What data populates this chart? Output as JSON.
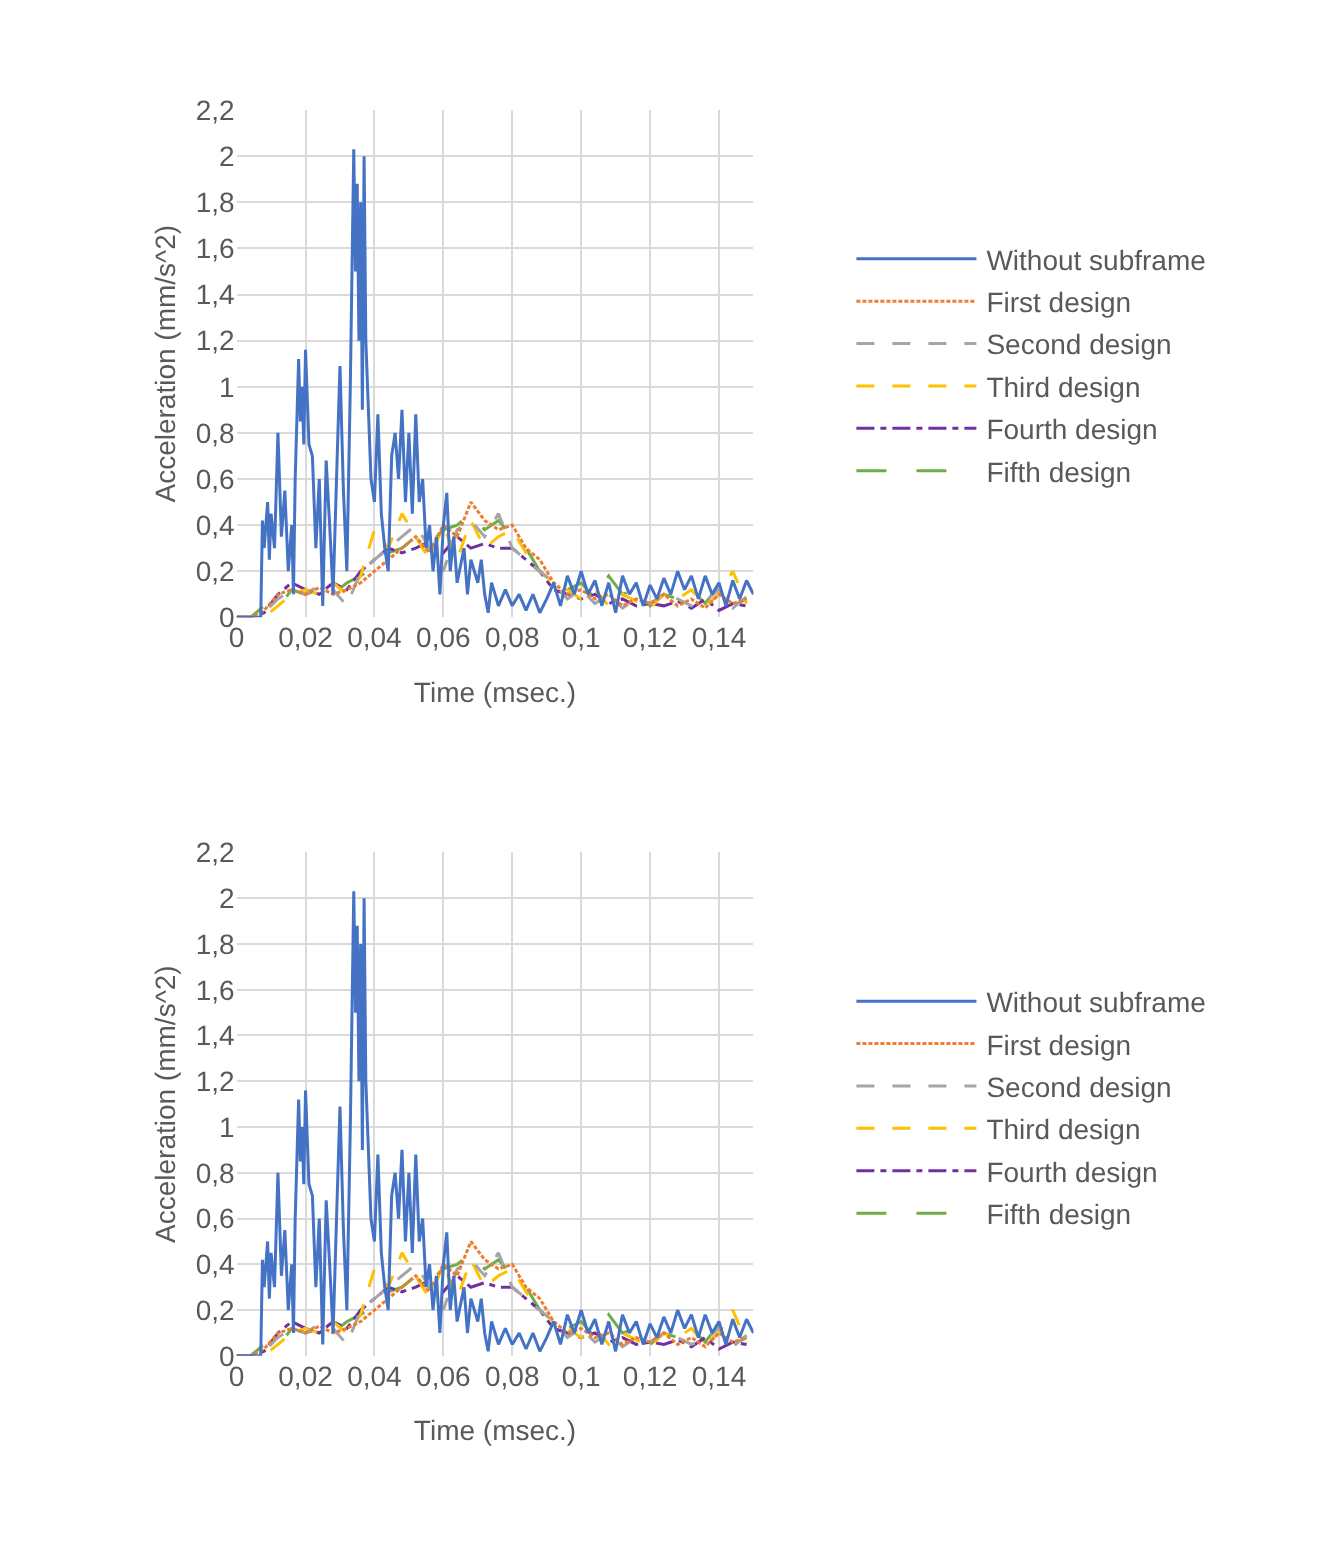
{
  "chart_data": [
    {
      "type": "line",
      "xlabel": "Time (msec.)",
      "ylabel": "Acceleration (mm/s^2)",
      "xlim": [
        0,
        0.15
      ],
      "ylim": [
        0,
        2.2
      ],
      "grid": true,
      "legend": "right",
      "marker": "none",
      "xticks": [
        0,
        {
          "value": 0.02,
          "label": "0,02"
        },
        {
          "value": 0.04,
          "label": "0,04"
        },
        {
          "value": 0.06,
          "label": "0,06"
        },
        {
          "value": 0.08,
          "label": "0,08"
        },
        {
          "value": 0.1,
          "label": "0,1"
        },
        {
          "value": 0.12,
          "label": "0,12"
        },
        {
          "value": 0.14,
          "label": "0,14"
        }
      ],
      "yticks": [
        0,
        {
          "value": 0.2,
          "label": "0,2"
        },
        {
          "value": 0.4,
          "label": "0,4"
        },
        {
          "value": 0.6,
          "label": "0,6"
        },
        {
          "value": 0.8,
          "label": "0,8"
        },
        1,
        {
          "value": 1.2,
          "label": "1,2"
        },
        {
          "value": 1.4,
          "label": "1,4"
        },
        {
          "value": 1.6,
          "label": "1,6"
        },
        {
          "value": 1.8,
          "label": "1,8"
        },
        2,
        {
          "value": 2.2,
          "label": "2,2"
        }
      ],
      "x": [
        0,
        0.004,
        0.008,
        0.012,
        0.016,
        0.02,
        0.024,
        0.028,
        0.032,
        0.036,
        0.04,
        0.044,
        0.048,
        0.052,
        0.056,
        0.06,
        0.064,
        0.068,
        0.072,
        0.076,
        0.08,
        0.084,
        0.088,
        0.092,
        0.096,
        0.1,
        0.104,
        0.108,
        0.112,
        0.116,
        0.12,
        0.124,
        0.128,
        0.132,
        0.136,
        0.14,
        0.144,
        0.148
      ],
      "series": [
        {
          "name": "Without subframe",
          "color": "#4472c4",
          "line_style": "solid",
          "x": [
            0,
            0.007,
            0.0075,
            0.008,
            0.009,
            0.0095,
            0.01,
            0.011,
            0.012,
            0.013,
            0.014,
            0.015,
            0.016,
            0.0165,
            0.017,
            0.018,
            0.0185,
            0.019,
            0.0195,
            0.02,
            0.021,
            0.022,
            0.023,
            0.024,
            0.025,
            0.026,
            0.027,
            0.028,
            0.029,
            0.03,
            0.031,
            0.032,
            0.033,
            0.034,
            0.0345,
            0.035,
            0.0355,
            0.036,
            0.0365,
            0.037,
            0.0375,
            0.038,
            0.039,
            0.04,
            0.041,
            0.042,
            0.043,
            0.044,
            0.045,
            0.046,
            0.047,
            0.048,
            0.049,
            0.05,
            0.051,
            0.052,
            0.053,
            0.054,
            0.055,
            0.056,
            0.057,
            0.058,
            0.059,
            0.06,
            0.061,
            0.062,
            0.063,
            0.064,
            0.066,
            0.067,
            0.068,
            0.07,
            0.071,
            0.072,
            0.073,
            0.074,
            0.076,
            0.078,
            0.08,
            0.082,
            0.084,
            0.086,
            0.088,
            0.09,
            0.092,
            0.094,
            0.096,
            0.098,
            0.1,
            0.102,
            0.104,
            0.106,
            0.108,
            0.11,
            0.112,
            0.114,
            0.116,
            0.118,
            0.12,
            0.122,
            0.124,
            0.126,
            0.128,
            0.13,
            0.132,
            0.134,
            0.136,
            0.138,
            0.14,
            0.142,
            0.144,
            0.146,
            0.148,
            0.15
          ],
          "values": [
            0,
            0,
            0.42,
            0.3,
            0.5,
            0.25,
            0.45,
            0.3,
            0.8,
            0.35,
            0.55,
            0.2,
            0.4,
            0.1,
            0.6,
            1.12,
            0.85,
            1.0,
            0.75,
            1.16,
            0.75,
            0.7,
            0.3,
            0.6,
            0.05,
            0.68,
            0.4,
            0.1,
            0.6,
            1.09,
            0.55,
            0.2,
            1.0,
            2.03,
            1.5,
            1.88,
            1.2,
            1.8,
            0.9,
            2.0,
            1.2,
            1.0,
            0.6,
            0.5,
            0.88,
            0.45,
            0.3,
            0.2,
            0.7,
            0.8,
            0.6,
            0.9,
            0.5,
            0.8,
            0.45,
            0.88,
            0.5,
            0.6,
            0.3,
            0.4,
            0.2,
            0.35,
            0.1,
            0.4,
            0.54,
            0.2,
            0.35,
            0.15,
            0.3,
            0.1,
            0.25,
            0.15,
            0.25,
            0.1,
            0.02,
            0.15,
            0.05,
            0.12,
            0.05,
            0.1,
            0.03,
            0.1,
            0.02,
            0.08,
            0.15,
            0.05,
            0.18,
            0.1,
            0.2,
            0.1,
            0.16,
            0.05,
            0.15,
            0.02,
            0.18,
            0.1,
            0.15,
            0.05,
            0.14,
            0.08,
            0.17,
            0.1,
            0.2,
            0.12,
            0.18,
            0.08,
            0.18,
            0.1,
            0.15,
            0.05,
            0.16,
            0.08,
            0.16,
            0.1
          ]
        },
        {
          "name": "First design",
          "color": "#ed7d31",
          "line_style": "dotted",
          "values": [
            0,
            0,
            0.03,
            0.1,
            0.12,
            0.1,
            0.13,
            0.1,
            0.12,
            0.15,
            0.2,
            0.25,
            0.3,
            0.35,
            0.28,
            0.4,
            0.35,
            0.5,
            0.42,
            0.38,
            0.4,
            0.3,
            0.25,
            0.15,
            0.1,
            0.12,
            0.08,
            0.1,
            0.05,
            0.08,
            0.06,
            0.1,
            0.05,
            0.08,
            0.04,
            0.1,
            0.06,
            0.08
          ]
        },
        {
          "name": "Second design",
          "color": "#a5a5a5",
          "line_style": "dashed",
          "values": [
            0,
            0,
            0.02,
            0.08,
            0.12,
            0.1,
            0.14,
            0.12,
            0.05,
            0.2,
            0.25,
            0.3,
            0.35,
            0.4,
            0.3,
            0.2,
            0.38,
            0.42,
            0.35,
            0.45,
            0.3,
            0.25,
            0.2,
            0.15,
            0.08,
            0.12,
            0.06,
            0.1,
            0.04,
            0.08,
            0.06,
            0.1,
            0.08,
            0.05,
            0.07,
            0.12,
            0.04,
            0.09
          ]
        },
        {
          "name": "Third design",
          "color": "#ffc000",
          "line_style": "dashed",
          "values": [
            0,
            0,
            0,
            0.05,
            0.1,
            0.12,
            0.1,
            0.15,
            0.1,
            0.18,
            0.38,
            0.3,
            0.45,
            0.35,
            0.25,
            0.4,
            0.25,
            0.42,
            0.3,
            0.35,
            0.38,
            0.28,
            0.2,
            0.15,
            0.12,
            0.08,
            0.12,
            0.05,
            0.1,
            0.07,
            0.04,
            0.1,
            0.08,
            0.12,
            0.05,
            0.1,
            0.2,
            0.06
          ]
        },
        {
          "name": "Fourth design",
          "color": "#7030a0",
          "line_style": "dashdot",
          "values": [
            0,
            0,
            0.02,
            0.1,
            0.15,
            0.12,
            0.1,
            0.15,
            0.12,
            0.2,
            0.25,
            0.3,
            0.28,
            0.3,
            0.33,
            0.28,
            0.35,
            0.3,
            0.32,
            0.3,
            0.3,
            0.25,
            0.2,
            0.12,
            0.1,
            0.08,
            0.1,
            0.06,
            0.08,
            0.05,
            0.06,
            0.05,
            0.07,
            0.04,
            0.08,
            0.03,
            0.06,
            0.05
          ]
        },
        {
          "name": "Fifth design",
          "color": "#70ad47",
          "line_style": "longdash",
          "values": [
            0,
            0,
            0.05,
            0.04,
            0.12,
            0.1,
            0.12,
            0.1,
            0.15,
            0.18,
            0.22,
            0.28,
            0.3,
            0.35,
            0.32,
            0.38,
            0.4,
            0.45,
            0.38,
            0.42,
            0.35,
            0.3,
            0.2,
            0.15,
            0.12,
            0.15,
            0.08,
            0.18,
            0.1,
            0.12,
            0.05,
            0.1,
            0.08,
            0.12,
            0.06,
            0.14,
            0.05,
            0.08
          ]
        }
      ]
    },
    {
      "type": "line",
      "xlabel": "Time (msec.)",
      "ylabel": "Acceleration (mm/s^2)",
      "xlim": [
        0,
        0.15
      ],
      "ylim": [
        0,
        2.2
      ],
      "grid": true,
      "legend": "right",
      "marker": "none",
      "xticks": [
        0,
        {
          "value": 0.02,
          "label": "0,02"
        },
        {
          "value": 0.04,
          "label": "0,04"
        },
        {
          "value": 0.06,
          "label": "0,06"
        },
        {
          "value": 0.08,
          "label": "0,08"
        },
        {
          "value": 0.1,
          "label": "0,1"
        },
        {
          "value": 0.12,
          "label": "0,12"
        },
        {
          "value": 0.14,
          "label": "0,14"
        }
      ],
      "yticks": [
        0,
        {
          "value": 0.2,
          "label": "0,2"
        },
        {
          "value": 0.4,
          "label": "0,4"
        },
        {
          "value": 0.6,
          "label": "0,6"
        },
        {
          "value": 0.8,
          "label": "0,8"
        },
        1,
        {
          "value": 1.2,
          "label": "1,2"
        },
        {
          "value": 1.4,
          "label": "1,4"
        },
        {
          "value": 1.6,
          "label": "1,6"
        },
        {
          "value": 1.8,
          "label": "1,8"
        },
        2,
        {
          "value": 2.2,
          "label": "2,2"
        }
      ],
      "x": [
        0,
        0.004,
        0.008,
        0.012,
        0.016,
        0.02,
        0.024,
        0.028,
        0.032,
        0.036,
        0.04,
        0.044,
        0.048,
        0.052,
        0.056,
        0.06,
        0.064,
        0.068,
        0.072,
        0.076,
        0.08,
        0.084,
        0.088,
        0.092,
        0.096,
        0.1,
        0.104,
        0.108,
        0.112,
        0.116,
        0.12,
        0.124,
        0.128,
        0.132,
        0.136,
        0.14,
        0.144,
        0.148
      ],
      "series": [
        {
          "name": "Without subframe",
          "color": "#4472c4",
          "line_style": "solid",
          "x": [
            0,
            0.007,
            0.0075,
            0.008,
            0.009,
            0.0095,
            0.01,
            0.011,
            0.012,
            0.013,
            0.014,
            0.015,
            0.016,
            0.0165,
            0.017,
            0.018,
            0.0185,
            0.019,
            0.0195,
            0.02,
            0.021,
            0.022,
            0.023,
            0.024,
            0.025,
            0.026,
            0.027,
            0.028,
            0.029,
            0.03,
            0.031,
            0.032,
            0.033,
            0.034,
            0.0345,
            0.035,
            0.0355,
            0.036,
            0.0365,
            0.037,
            0.0375,
            0.038,
            0.039,
            0.04,
            0.041,
            0.042,
            0.043,
            0.044,
            0.045,
            0.046,
            0.047,
            0.048,
            0.049,
            0.05,
            0.051,
            0.052,
            0.053,
            0.054,
            0.055,
            0.056,
            0.057,
            0.058,
            0.059,
            0.06,
            0.061,
            0.062,
            0.063,
            0.064,
            0.066,
            0.067,
            0.068,
            0.07,
            0.071,
            0.072,
            0.073,
            0.074,
            0.076,
            0.078,
            0.08,
            0.082,
            0.084,
            0.086,
            0.088,
            0.09,
            0.092,
            0.094,
            0.096,
            0.098,
            0.1,
            0.102,
            0.104,
            0.106,
            0.108,
            0.11,
            0.112,
            0.114,
            0.116,
            0.118,
            0.12,
            0.122,
            0.124,
            0.126,
            0.128,
            0.13,
            0.132,
            0.134,
            0.136,
            0.138,
            0.14,
            0.142,
            0.144,
            0.146,
            0.148,
            0.15
          ],
          "values": [
            0,
            0,
            0.42,
            0.3,
            0.5,
            0.25,
            0.45,
            0.3,
            0.8,
            0.35,
            0.55,
            0.2,
            0.4,
            0.1,
            0.6,
            1.12,
            0.85,
            1.0,
            0.75,
            1.16,
            0.75,
            0.7,
            0.3,
            0.6,
            0.05,
            0.68,
            0.4,
            0.1,
            0.6,
            1.09,
            0.55,
            0.2,
            1.0,
            2.03,
            1.5,
            1.88,
            1.2,
            1.8,
            0.9,
            2.0,
            1.2,
            1.0,
            0.6,
            0.5,
            0.88,
            0.45,
            0.3,
            0.2,
            0.7,
            0.8,
            0.6,
            0.9,
            0.5,
            0.8,
            0.45,
            0.88,
            0.5,
            0.6,
            0.3,
            0.4,
            0.2,
            0.35,
            0.1,
            0.4,
            0.54,
            0.2,
            0.35,
            0.15,
            0.3,
            0.1,
            0.25,
            0.15,
            0.25,
            0.1,
            0.02,
            0.15,
            0.05,
            0.12,
            0.05,
            0.1,
            0.03,
            0.1,
            0.02,
            0.08,
            0.15,
            0.05,
            0.18,
            0.1,
            0.2,
            0.1,
            0.16,
            0.05,
            0.15,
            0.02,
            0.18,
            0.1,
            0.15,
            0.05,
            0.14,
            0.08,
            0.17,
            0.1,
            0.2,
            0.12,
            0.18,
            0.08,
            0.18,
            0.1,
            0.15,
            0.05,
            0.16,
            0.08,
            0.16,
            0.1
          ]
        },
        {
          "name": "First design",
          "color": "#ed7d31",
          "line_style": "dotted",
          "values": [
            0,
            0,
            0.03,
            0.1,
            0.12,
            0.1,
            0.13,
            0.1,
            0.12,
            0.15,
            0.2,
            0.25,
            0.3,
            0.35,
            0.28,
            0.4,
            0.35,
            0.5,
            0.42,
            0.38,
            0.4,
            0.3,
            0.25,
            0.15,
            0.1,
            0.12,
            0.08,
            0.1,
            0.05,
            0.08,
            0.06,
            0.1,
            0.05,
            0.08,
            0.04,
            0.1,
            0.06,
            0.08
          ]
        },
        {
          "name": "Second design",
          "color": "#a5a5a5",
          "line_style": "dashed",
          "values": [
            0,
            0,
            0.02,
            0.08,
            0.12,
            0.1,
            0.14,
            0.12,
            0.05,
            0.2,
            0.25,
            0.3,
            0.35,
            0.4,
            0.3,
            0.2,
            0.38,
            0.42,
            0.35,
            0.45,
            0.3,
            0.25,
            0.2,
            0.15,
            0.08,
            0.12,
            0.06,
            0.1,
            0.04,
            0.08,
            0.06,
            0.1,
            0.08,
            0.05,
            0.07,
            0.12,
            0.04,
            0.09
          ]
        },
        {
          "name": "Third design",
          "color": "#ffc000",
          "line_style": "dashed",
          "values": [
            0,
            0,
            0,
            0.05,
            0.1,
            0.12,
            0.1,
            0.15,
            0.1,
            0.18,
            0.38,
            0.3,
            0.45,
            0.35,
            0.25,
            0.4,
            0.25,
            0.42,
            0.3,
            0.35,
            0.38,
            0.28,
            0.2,
            0.15,
            0.12,
            0.08,
            0.12,
            0.05,
            0.1,
            0.07,
            0.04,
            0.1,
            0.08,
            0.12,
            0.05,
            0.1,
            0.2,
            0.06
          ]
        },
        {
          "name": "Fourth design",
          "color": "#7030a0",
          "line_style": "dashdot",
          "values": [
            0,
            0,
            0.02,
            0.1,
            0.15,
            0.12,
            0.1,
            0.15,
            0.12,
            0.2,
            0.25,
            0.3,
            0.28,
            0.3,
            0.33,
            0.28,
            0.35,
            0.3,
            0.32,
            0.3,
            0.3,
            0.25,
            0.2,
            0.12,
            0.1,
            0.08,
            0.1,
            0.06,
            0.08,
            0.05,
            0.06,
            0.05,
            0.07,
            0.04,
            0.08,
            0.03,
            0.06,
            0.05
          ]
        },
        {
          "name": "Fifth design",
          "color": "#70ad47",
          "line_style": "longdash",
          "values": [
            0,
            0,
            0.05,
            0.04,
            0.12,
            0.1,
            0.12,
            0.1,
            0.15,
            0.18,
            0.22,
            0.28,
            0.3,
            0.35,
            0.32,
            0.38,
            0.4,
            0.45,
            0.38,
            0.42,
            0.35,
            0.3,
            0.2,
            0.15,
            0.12,
            0.15,
            0.08,
            0.18,
            0.1,
            0.12,
            0.05,
            0.1,
            0.08,
            0.12,
            0.06,
            0.14,
            0.05,
            0.08
          ]
        }
      ]
    }
  ]
}
